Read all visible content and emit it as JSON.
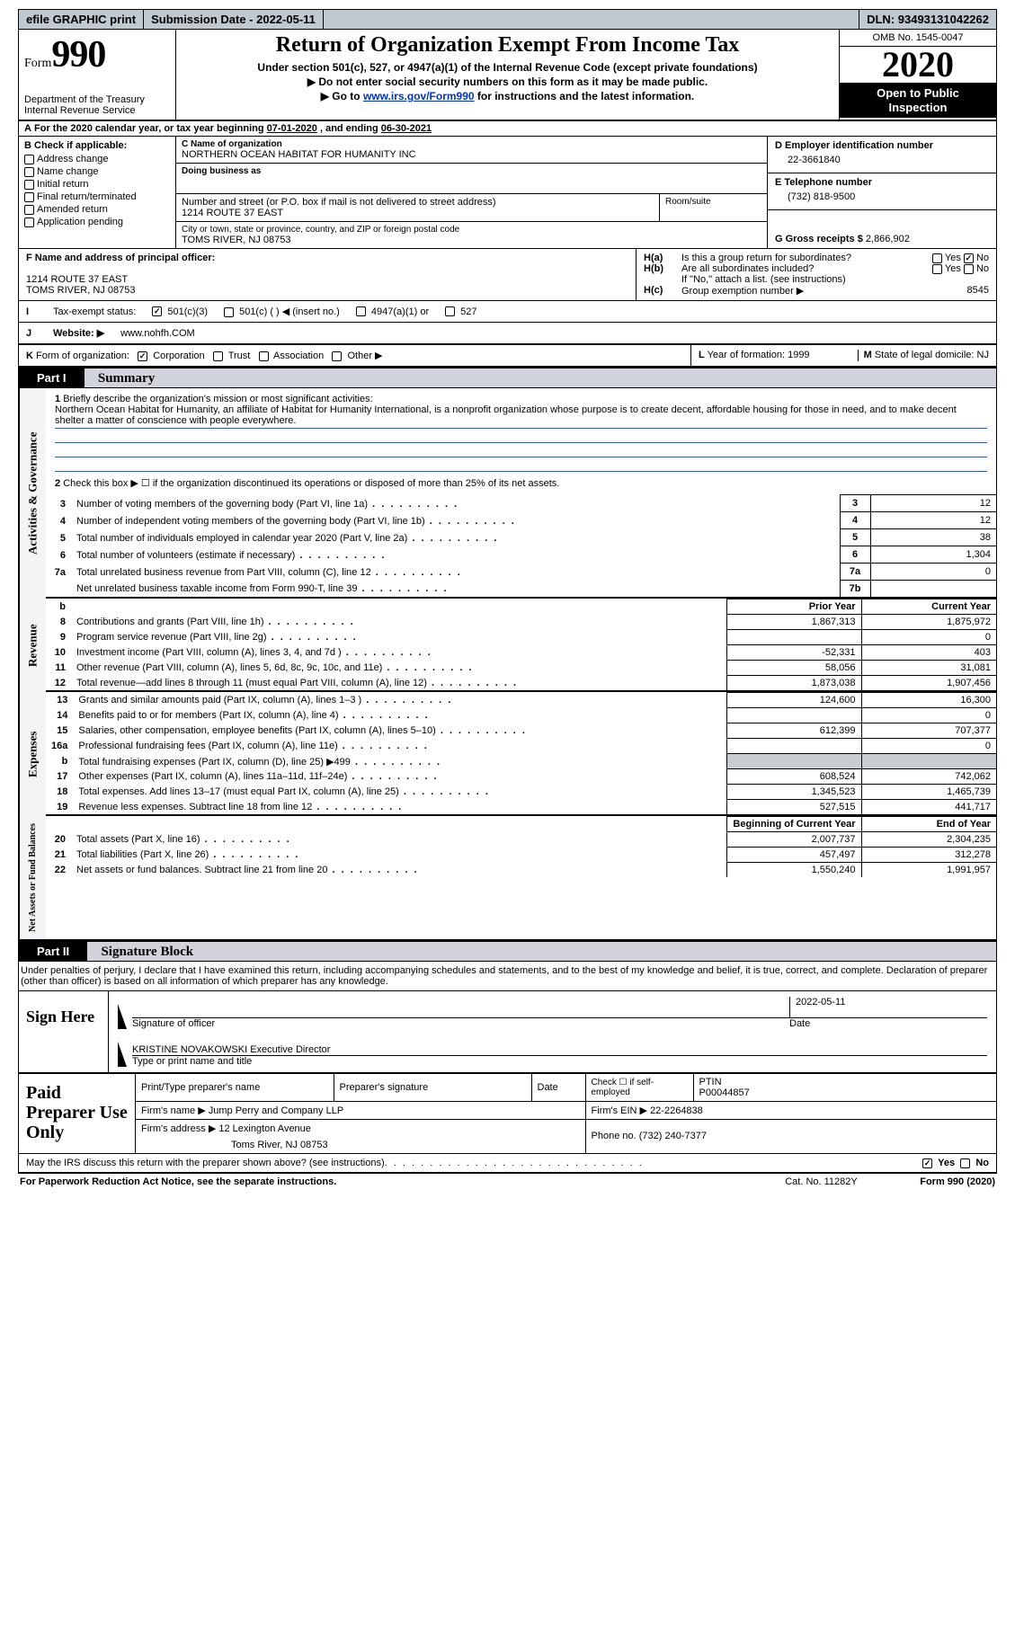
{
  "topbar": {
    "efile_label": "efile GRAPHIC print",
    "submission_label": "Submission Date - ",
    "submission_date": "2022-05-11",
    "dln_label": "DLN: ",
    "dln": "93493131042262"
  },
  "header": {
    "form_word": "Form",
    "form_number": "990",
    "dept1": "Department of the Treasury",
    "dept2": "Internal Revenue Service",
    "title": "Return of Organization Exempt From Income Tax",
    "subtitle": "Under section 501(c), 527, or 4947(a)(1) of the Internal Revenue Code (except private foundations)",
    "note1": "Do not enter social security numbers on this form as it may be made public.",
    "note2_pre": "Go to ",
    "note2_link": "www.irs.gov/Form990",
    "note2_post": " for instructions and the latest information.",
    "omb": "OMB No. 1545-0047",
    "year": "2020",
    "inspection1": "Open to Public",
    "inspection2": "Inspection"
  },
  "row_a": {
    "a_label": "A",
    "text_pre": " For the 2020 calendar year, or tax year beginning ",
    "begin": "07-01-2020",
    "mid": " , and ending ",
    "end": "06-30-2021"
  },
  "box_b": {
    "label": "B Check if applicable:",
    "items": [
      "Address change",
      "Name change",
      "Initial return",
      "Final return/terminated",
      "Amended return",
      "Application pending"
    ]
  },
  "box_c": {
    "name_label": "C Name of organization",
    "name": "NORTHERN OCEAN HABITAT FOR HUMANITY INC",
    "dba_label": "Doing business as",
    "dba": "",
    "street_label": "Number and street (or P.O. box if mail is not delivered to street address)",
    "street": "1214 ROUTE 37 EAST",
    "room_label": "Room/suite",
    "room": "",
    "city_label": "City or town, state or province, country, and ZIP or foreign postal code",
    "city": "TOMS RIVER, NJ  08753"
  },
  "box_d": {
    "label": "D Employer identification number",
    "value": "22-3661840"
  },
  "box_e": {
    "label": "E Telephone number",
    "value": "(732) 818-9500"
  },
  "box_g": {
    "label": "G Gross receipts $ ",
    "value": "2,866,902"
  },
  "box_f": {
    "label": "F Name and address of principal officer:",
    "line1": "1214 ROUTE 37 EAST",
    "line2": "TOMS RIVER, NJ  08753"
  },
  "box_h": {
    "a_label": "H(a)",
    "a_text": "Is this a group return for subordinates?",
    "a_yes": "Yes",
    "a_no": "No",
    "a_val": "No",
    "b_label": "H(b)",
    "b_text": "Are all subordinates included?",
    "b_yes": "Yes",
    "b_no": "No",
    "b_note": "If \"No,\" attach a list. (see instructions)",
    "c_label": "H(c)",
    "c_text": "Group exemption number ▶",
    "c_val": "8545"
  },
  "box_i": {
    "label": "I",
    "text": "Tax-exempt status:",
    "opts": [
      "501(c)(3)",
      "501(c) (  ) ◀ (insert no.)",
      "4947(a)(1) or",
      "527"
    ],
    "checked": 0
  },
  "box_j": {
    "label": "J",
    "text": "Website: ▶",
    "value": "www.nohfh.COM"
  },
  "box_k": {
    "label": "K",
    "text": "Form of organization:",
    "opts": [
      "Corporation",
      "Trust",
      "Association",
      "Other ▶"
    ],
    "checked": 0
  },
  "box_l": {
    "label": "L",
    "text": "Year of formation: ",
    "value": "1999"
  },
  "box_m": {
    "label": "M",
    "text": "State of legal domicile: ",
    "value": "NJ"
  },
  "part1": {
    "part_label": "Part I",
    "title": "Summary",
    "gov_label": "Activities & Governance",
    "rev_label": "Revenue",
    "exp_label": "Expenses",
    "net_label": "Net Assets or Fund Balances",
    "q1_label": "1",
    "q1_text": "Briefly describe the organization's mission or most significant activities:",
    "q1_mission": "Northern Ocean Habitat for Humanity, an affiliate of Habitat for Humanity International, is a nonprofit organization whose purpose is to create decent, affordable housing for those in need, and to make decent shelter a matter of conscience with people everywhere.",
    "q2_label": "2",
    "q2_text": "Check this box ▶ ☐ if the organization discontinued its operations or disposed of more than 25% of its net assets.",
    "gov_rows": [
      {
        "n": "3",
        "label": "Number of voting members of the governing body (Part VI, line 1a)",
        "cn": "3",
        "v": "12"
      },
      {
        "n": "4",
        "label": "Number of independent voting members of the governing body (Part VI, line 1b)",
        "cn": "4",
        "v": "12"
      },
      {
        "n": "5",
        "label": "Total number of individuals employed in calendar year 2020 (Part V, line 2a)",
        "cn": "5",
        "v": "38"
      },
      {
        "n": "6",
        "label": "Total number of volunteers (estimate if necessary)",
        "cn": "6",
        "v": "1,304"
      },
      {
        "n": "7a",
        "label": "Total unrelated business revenue from Part VIII, column (C), line 12",
        "cn": "7a",
        "v": "0"
      },
      {
        "n": "",
        "label": "Net unrelated business taxable income from Form 990-T, line 39",
        "cn": "7b",
        "v": ""
      }
    ],
    "col_prior": "Prior Year",
    "col_current": "Current Year",
    "col_begin": "Beginning of Current Year",
    "col_end": "End of Year",
    "rev_rows": [
      {
        "n": "8",
        "label": "Contributions and grants (Part VIII, line 1h)",
        "py": "1,867,313",
        "cy": "1,875,972"
      },
      {
        "n": "9",
        "label": "Program service revenue (Part VIII, line 2g)",
        "py": "",
        "cy": "0"
      },
      {
        "n": "10",
        "label": "Investment income (Part VIII, column (A), lines 3, 4, and 7d )",
        "py": "-52,331",
        "cy": "403"
      },
      {
        "n": "11",
        "label": "Other revenue (Part VIII, column (A), lines 5, 6d, 8c, 9c, 10c, and 11e)",
        "py": "58,056",
        "cy": "31,081"
      },
      {
        "n": "12",
        "label": "Total revenue—add lines 8 through 11 (must equal Part VIII, column (A), line 12)",
        "py": "1,873,038",
        "cy": "1,907,456"
      }
    ],
    "exp_rows": [
      {
        "n": "13",
        "label": "Grants and similar amounts paid (Part IX, column (A), lines 1–3 )",
        "py": "124,600",
        "cy": "16,300"
      },
      {
        "n": "14",
        "label": "Benefits paid to or for members (Part IX, column (A), line 4)",
        "py": "",
        "cy": "0"
      },
      {
        "n": "15",
        "label": "Salaries, other compensation, employee benefits (Part IX, column (A), lines 5–10)",
        "py": "612,399",
        "cy": "707,377"
      },
      {
        "n": "16a",
        "label": "Professional fundraising fees (Part IX, column (A), line 11e)",
        "py": "",
        "cy": "0"
      },
      {
        "n": "b",
        "label": "Total fundraising expenses (Part IX, column (D), line 25) ▶499",
        "py": "SHADE",
        "cy": "SHADE"
      },
      {
        "n": "17",
        "label": "Other expenses (Part IX, column (A), lines 11a–11d, 11f–24e)",
        "py": "608,524",
        "cy": "742,062"
      },
      {
        "n": "18",
        "label": "Total expenses. Add lines 13–17 (must equal Part IX, column (A), line 25)",
        "py": "1,345,523",
        "cy": "1,465,739"
      },
      {
        "n": "19",
        "label": "Revenue less expenses. Subtract line 18 from line 12",
        "py": "527,515",
        "cy": "441,717"
      }
    ],
    "net_rows": [
      {
        "n": "20",
        "label": "Total assets (Part X, line 16)",
        "py": "2,007,737",
        "cy": "2,304,235"
      },
      {
        "n": "21",
        "label": "Total liabilities (Part X, line 26)",
        "py": "457,497",
        "cy": "312,278"
      },
      {
        "n": "22",
        "label": "Net assets or fund balances. Subtract line 21 from line 20",
        "py": "1,550,240",
        "cy": "1,991,957"
      }
    ]
  },
  "part2": {
    "part_label": "Part II",
    "title": "Signature Block",
    "intro": "Under penalties of perjury, I declare that I have examined this return, including accompanying schedules and statements, and to the best of my knowledge and belief, it is true, correct, and complete. Declaration of preparer (other than officer) is based on all information of which preparer has any knowledge.",
    "sign_here": "Sign Here",
    "sig_officer_cap": "Signature of officer",
    "sig_date_cap": "Date",
    "sig_date": "2022-05-11",
    "officer_name": "KRISTINE NOVAKOWSKI Executive Director",
    "officer_cap": "Type or print name and title",
    "paid_label": "Paid Preparer Use Only",
    "prep_name_label": "Print/Type preparer's name",
    "prep_sig_label": "Preparer's signature",
    "prep_date_label": "Date",
    "prep_self_label": "Check ☐ if self-employed",
    "ptin_label": "PTIN",
    "ptin": "P00044857",
    "firm_name_label": "Firm's name   ▶",
    "firm_name": "Jump Perry and Company LLP",
    "firm_ein_label": "Firm's EIN ▶",
    "firm_ein": "22-2264838",
    "firm_addr_label": "Firm's address ▶",
    "firm_addr1": "12 Lexington Avenue",
    "firm_addr2": "Toms River, NJ  08753",
    "firm_phone_label": "Phone no. ",
    "firm_phone": "(732) 240-7377",
    "discuss": "May the IRS discuss this return with the preparer shown above? (see instructions)",
    "discuss_yes": "Yes",
    "discuss_no": "No",
    "discuss_val": "Yes"
  },
  "footer": {
    "left": "For Paperwork Reduction Act Notice, see the separate instructions.",
    "mid": "Cat. No. 11282Y",
    "right_pre": "Form ",
    "right_form": "990",
    "right_post": " (2020)"
  },
  "b_row_note": "b"
}
